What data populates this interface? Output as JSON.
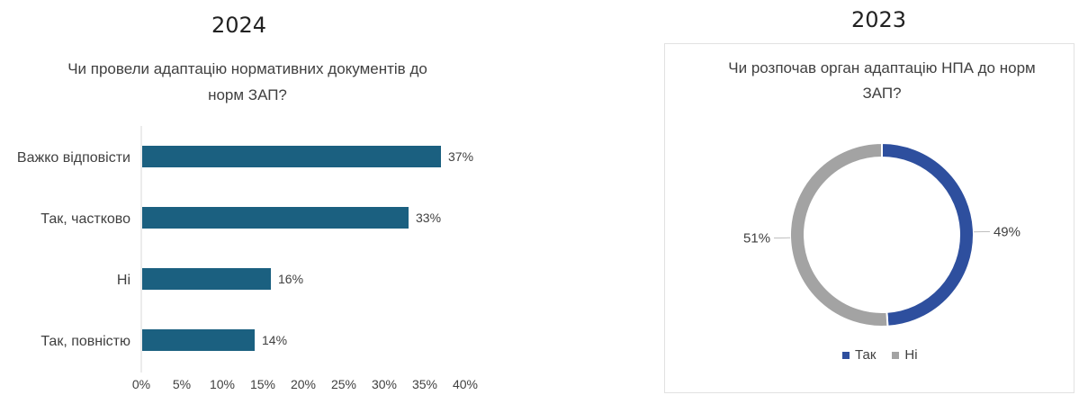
{
  "colors": {
    "bar": "#1b6080",
    "tak": "#2e4f9e",
    "ni": "#a3a3a3",
    "axis": "#d9d9d9"
  },
  "chart_data": [
    {
      "type": "bar",
      "orientation": "horizontal",
      "year": "2024",
      "title": "Чи провели адаптацію нормативних документів  до норм ЗАП?",
      "title_lines": [
        "Чи провели адаптацію нормативних документів  до",
        "норм ЗАП?"
      ],
      "categories": [
        "Важко відповісти",
        "Так, частково",
        "Ні",
        "Так, повністю"
      ],
      "values": [
        37,
        33,
        16,
        14
      ],
      "data_labels": [
        "37%",
        "33%",
        "16%",
        "14%"
      ],
      "xlim": [
        0,
        40
      ],
      "xticks": [
        "0%",
        "5%",
        "10%",
        "15%",
        "20%",
        "25%",
        "30%",
        "35%",
        "40%"
      ],
      "grid": false
    },
    {
      "type": "pie",
      "donut": true,
      "year": "2023",
      "title": "Чи розпочав орган адаптацію НПА до норм ЗАП?",
      "title_lines": [
        "Чи розпочав орган адаптацію НПА до норм",
        "ЗАП?"
      ],
      "categories": [
        "Так",
        "Ні"
      ],
      "values": [
        49,
        51
      ],
      "data_labels": [
        "49%",
        "51%"
      ],
      "legend_position": "bottom"
    }
  ]
}
